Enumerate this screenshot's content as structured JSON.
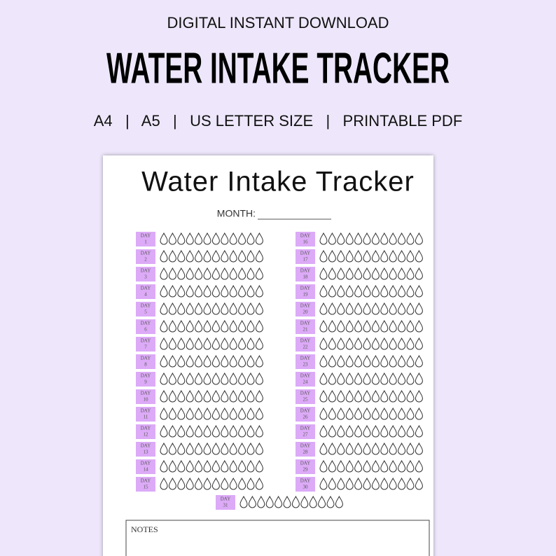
{
  "header": {
    "kicker": "DIGITAL INSTANT DOWNLOAD",
    "title": "WATER INTAKE TRACKER",
    "formats": "A4   |   A5   |   US LETTER SIZE   |   PRINTABLE PDF"
  },
  "sheet": {
    "title": "Water Intake Tracker",
    "month_label": "MONTH:",
    "day_label": "DAY",
    "days": [
      1,
      2,
      3,
      4,
      5,
      6,
      7,
      8,
      9,
      10,
      11,
      12,
      13,
      14,
      15,
      16,
      17,
      18,
      19,
      20,
      21,
      22,
      23,
      24,
      25,
      26,
      27,
      28,
      29,
      30,
      31
    ],
    "notes_label": "NOTES"
  }
}
